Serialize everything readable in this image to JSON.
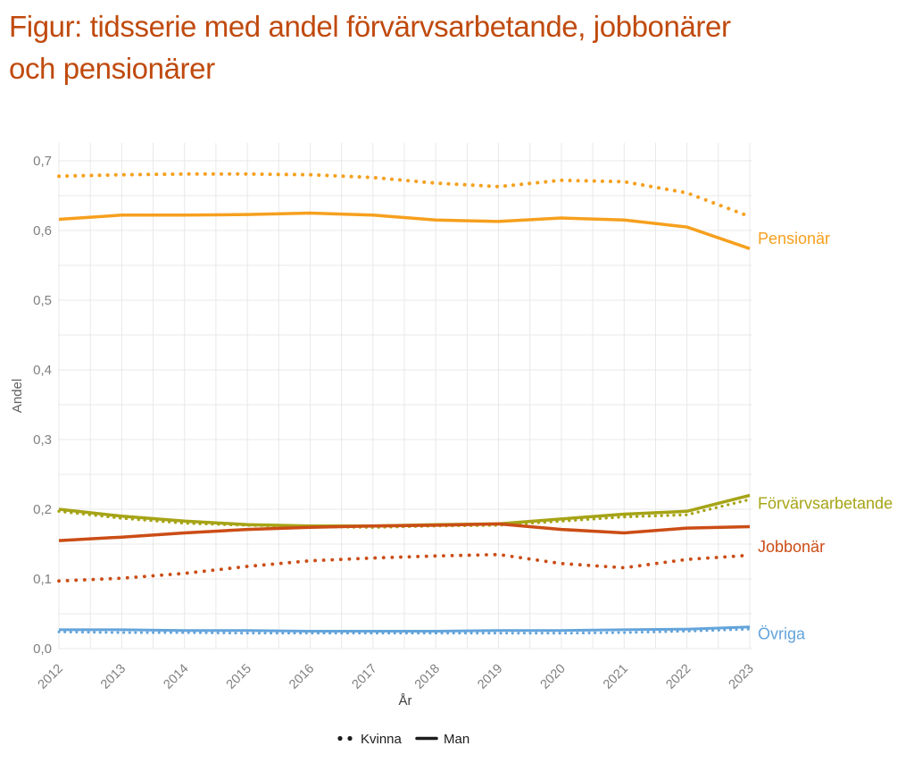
{
  "figure": {
    "title_lines": [
      "Figur: tidsserie med andel förvärvsarbetande, jobbonärer",
      "och pensionärer"
    ],
    "title_full": "Figur: tidsserie med andel förvärvsarbetande, jobbonärer och pensionärer"
  },
  "chart_data": {
    "type": "line",
    "title": "Figur: tidsserie med andel förvärvsarbetande, jobbonärer och pensionärer",
    "xlabel": "År",
    "ylabel": "Andel",
    "x": [
      2012,
      2013,
      2014,
      2015,
      2016,
      2017,
      2018,
      2019,
      2020,
      2021,
      2022,
      2023
    ],
    "xtick_labels": [
      "2012",
      "2013",
      "2014",
      "2015",
      "2016",
      "2017",
      "2018",
      "2019",
      "2020",
      "2021",
      "2022",
      "2023"
    ],
    "ytick_values": [
      0.0,
      0.1,
      0.2,
      0.3,
      0.4,
      0.5,
      0.6,
      0.7
    ],
    "ytick_labels": [
      "0,0",
      "0,1",
      "0,2",
      "0,3",
      "0,4",
      "0,5",
      "0,6",
      "0,7"
    ],
    "ylim": [
      0,
      0.7
    ],
    "y_minor_gridline_step": 0.05,
    "x_gridline_step_years": 0.5,
    "grid": true,
    "legend": {
      "position": "bottom",
      "items": [
        {
          "label": "Kvinna",
          "style": "dotted"
        },
        {
          "label": "Man",
          "style": "solid"
        }
      ]
    },
    "right_labels": [
      {
        "text": "Pensionär",
        "color": "#F6A01E"
      },
      {
        "text": "Förvärvsarbetande",
        "color": "#A6A416"
      },
      {
        "text": "Jobbonär",
        "color": "#CB4D16"
      },
      {
        "text": "Övriga",
        "color": "#63A4DB"
      }
    ],
    "series": [
      {
        "name": "Pensionär",
        "gender": "Kvinna",
        "style": "dotted",
        "color": "#F6A01E",
        "values": [
          0.678,
          0.68,
          0.681,
          0.681,
          0.68,
          0.676,
          0.668,
          0.663,
          0.672,
          0.67,
          0.654,
          0.62
        ]
      },
      {
        "name": "Pensionär",
        "gender": "Man",
        "style": "solid",
        "color": "#F6A01E",
        "values": [
          0.616,
          0.622,
          0.622,
          0.623,
          0.625,
          0.622,
          0.615,
          0.613,
          0.618,
          0.615,
          0.605,
          0.574
        ]
      },
      {
        "name": "Förvärvsarbetande",
        "gender": "Kvinna",
        "style": "dotted",
        "color": "#A6A416",
        "values": [
          0.197,
          0.187,
          0.18,
          0.177,
          0.175,
          0.174,
          0.176,
          0.177,
          0.183,
          0.189,
          0.192,
          0.214
        ]
      },
      {
        "name": "Förvärvsarbetande",
        "gender": "Man",
        "style": "solid",
        "color": "#A6A416",
        "values": [
          0.2,
          0.19,
          0.183,
          0.178,
          0.176,
          0.176,
          0.178,
          0.179,
          0.186,
          0.193,
          0.197,
          0.22
        ]
      },
      {
        "name": "Jobbonär",
        "gender": "Kvinna",
        "style": "dotted",
        "color": "#CB4D16",
        "values": [
          0.097,
          0.101,
          0.108,
          0.118,
          0.126,
          0.13,
          0.133,
          0.135,
          0.122,
          0.116,
          0.128,
          0.134
        ]
      },
      {
        "name": "Jobbonär",
        "gender": "Man",
        "style": "solid",
        "color": "#CB4D16",
        "values": [
          0.155,
          0.16,
          0.166,
          0.171,
          0.174,
          0.176,
          0.177,
          0.179,
          0.171,
          0.166,
          0.173,
          0.175
        ]
      },
      {
        "name": "Övriga",
        "gender": "Kvinna",
        "style": "dotted",
        "color": "#63A4DB",
        "values": [
          0.024,
          0.023,
          0.023,
          0.022,
          0.022,
          0.022,
          0.022,
          0.022,
          0.022,
          0.023,
          0.025,
          0.028
        ]
      },
      {
        "name": "Övriga",
        "gender": "Man",
        "style": "solid",
        "color": "#63A4DB",
        "values": [
          0.027,
          0.027,
          0.026,
          0.026,
          0.025,
          0.025,
          0.025,
          0.026,
          0.026,
          0.027,
          0.028,
          0.031
        ]
      }
    ]
  },
  "colors": {
    "title": "#C04A0E",
    "tick_text": "#7F7F7F",
    "axis_title_x": "#3F3F3F",
    "axis_title_y": "#636363",
    "gridline": "#E8E8E8",
    "legend_text": "#1C1C1C",
    "background": "#FFFFFF"
  }
}
